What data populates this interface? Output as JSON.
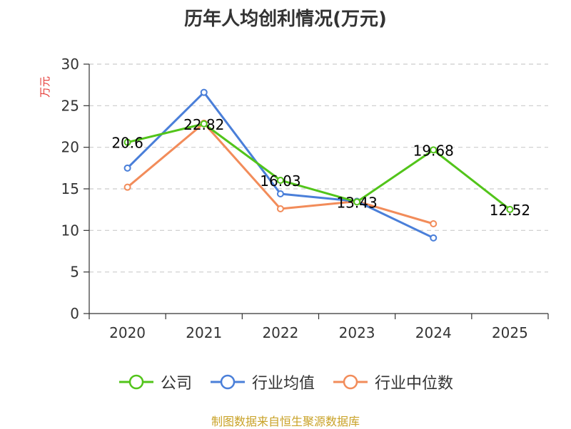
{
  "chart_data": {
    "type": "line",
    "title": "历年人均创利情况(万元)",
    "ylabel": "万元",
    "xlabel": "",
    "categories": [
      "2020",
      "2021",
      "2022",
      "2023",
      "2024",
      "2025"
    ],
    "ylim": [
      0,
      30
    ],
    "yticks": [
      0,
      5,
      10,
      15,
      20,
      25,
      30
    ],
    "grid": true,
    "legend_position": "bottom",
    "series": [
      {
        "name": "公司",
        "color": "#52c41a",
        "values": [
          20.6,
          22.82,
          16.03,
          13.43,
          19.68,
          12.52
        ],
        "labels": [
          "20.6",
          "22.82",
          "16.03",
          "13.43",
          "19.68",
          "12.52"
        ]
      },
      {
        "name": "行业均值",
        "color": "#4a7fd9",
        "values": [
          17.5,
          26.6,
          14.4,
          13.5,
          9.1,
          null
        ]
      },
      {
        "name": "行业中位数",
        "color": "#f28c5a",
        "values": [
          15.2,
          22.9,
          12.6,
          13.5,
          10.8,
          null
        ]
      }
    ]
  },
  "source_note": "制图数据来自恒生聚源数据库"
}
